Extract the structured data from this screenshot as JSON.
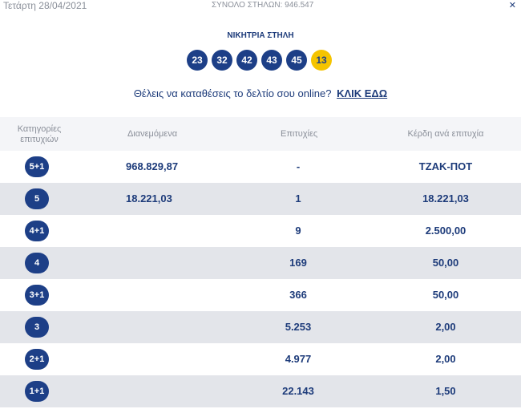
{
  "header": {
    "date": "Τετάρτη 28/04/2021",
    "total_columns": "ΣΥΝΟΛΟ ΣΤΗΛΩΝ: 946.547",
    "close_glyph": "✕"
  },
  "winning": {
    "title": "ΝΙΚΗΤΡΙΑ ΣΤΗΛΗ",
    "numbers": [
      "23",
      "32",
      "42",
      "43",
      "45"
    ],
    "joker": "13"
  },
  "cta": {
    "text": "Θέλεις να καταθέσεις το δελτίο σου online?",
    "link": "ΚΛΙΚ ΕΔΩ"
  },
  "table": {
    "headers": {
      "category": "Κατηγορίες επιτυχιών",
      "distributed": "Διανεμόμενα",
      "hits": "Επιτυχίες",
      "prize": "Κέρδη ανά επιτυχία"
    },
    "rows": [
      {
        "category": "5+1",
        "distributed": "968.829,87",
        "hits": "-",
        "prize": "ΤΖΑΚ-ΠΟΤ"
      },
      {
        "category": "5",
        "distributed": "18.221,03",
        "hits": "1",
        "prize": "18.221,03"
      },
      {
        "category": "4+1",
        "distributed": "",
        "hits": "9",
        "prize": "2.500,00"
      },
      {
        "category": "4",
        "distributed": "",
        "hits": "169",
        "prize": "50,00"
      },
      {
        "category": "3+1",
        "distributed": "",
        "hits": "366",
        "prize": "50,00"
      },
      {
        "category": "3",
        "distributed": "",
        "hits": "5.253",
        "prize": "2,00"
      },
      {
        "category": "2+1",
        "distributed": "",
        "hits": "4.977",
        "prize": "2,00"
      },
      {
        "category": "1+1",
        "distributed": "",
        "hits": "22.143",
        "prize": "1,50"
      }
    ]
  }
}
